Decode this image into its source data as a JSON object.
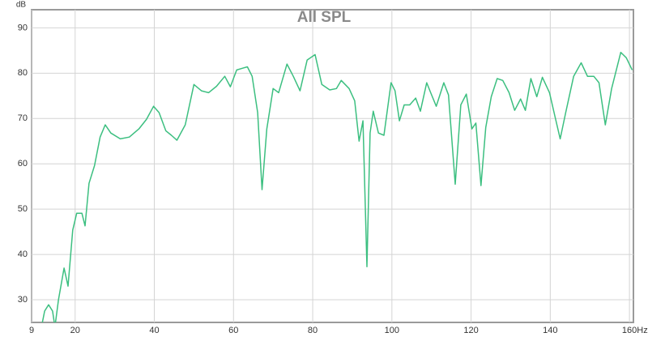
{
  "chart_data": {
    "type": "line",
    "title": "All SPL",
    "y_label": "dB",
    "x_label": "Hz",
    "xlim": [
      9,
      161
    ],
    "ylim": [
      25,
      94
    ],
    "xticks": [
      9,
      20,
      40,
      60,
      80,
      100,
      120,
      140,
      160
    ],
    "yticks": [
      30,
      40,
      50,
      60,
      70,
      80,
      90
    ],
    "grid": true,
    "x": [
      11.5,
      12.3,
      13.3,
      14.3,
      14.9,
      15.8,
      17.2,
      18.2,
      19.4,
      20.4,
      21.7,
      22.5,
      23.5,
      24.9,
      26.3,
      27.6,
      29,
      31.4,
      33.7,
      36.1,
      38,
      39.8,
      41.2,
      42.9,
      44.3,
      45.7,
      47.8,
      50,
      51.9,
      53.7,
      55.7,
      57.8,
      59.2,
      60.8,
      62.3,
      63.5,
      64.7,
      66.1,
      67.2,
      68.4,
      70,
      71.4,
      73.5,
      75.1,
      76.8,
      78.6,
      80.6,
      82.3,
      84.3,
      86,
      87.2,
      89.2,
      90.6,
      91.7,
      92.7,
      93.7,
      94.5,
      95.3,
      96.6,
      98,
      99.8,
      100.8,
      101.9,
      103.1,
      104.5,
      106,
      107.2,
      108.8,
      109.8,
      111.2,
      113.1,
      114.3,
      116,
      117.4,
      118.8,
      120.2,
      121.2,
      122.5,
      123.7,
      125.1,
      126.6,
      128,
      129.6,
      131,
      132.5,
      133.7,
      135.1,
      136.6,
      138,
      139.8,
      141.2,
      142.5,
      143.9,
      145.9,
      147.8,
      149.4,
      151,
      152.3,
      153.9,
      155.5,
      157.8,
      159.2,
      160.7
    ],
    "series": [
      {
        "name": "All SPL",
        "color": "#3cbf80",
        "values": [
          24,
          27.5,
          28.9,
          27.5,
          24,
          30,
          37,
          33,
          45.4,
          49.1,
          49.1,
          46.3,
          55.7,
          59.6,
          65.9,
          68.6,
          66.8,
          65.5,
          65.9,
          67.7,
          69.8,
          72.7,
          71.3,
          67.3,
          66.3,
          65.2,
          68.6,
          77.5,
          76.1,
          75.7,
          77.1,
          79.3,
          77,
          80.7,
          81.1,
          81.4,
          79.3,
          71.3,
          54.3,
          67.7,
          76.6,
          75.7,
          82,
          79.3,
          76.1,
          82.9,
          84.1,
          77.5,
          76.3,
          76.6,
          78.4,
          76.6,
          73.9,
          65,
          69.5,
          37.3,
          66.8,
          71.6,
          66.8,
          66.3,
          77.9,
          76.1,
          69.5,
          73,
          73,
          74.5,
          71.6,
          77.9,
          75.7,
          72.7,
          77.9,
          75.2,
          55.5,
          73,
          75.4,
          67.7,
          69,
          55.2,
          68,
          74.8,
          78.8,
          78.4,
          75.7,
          71.8,
          74.3,
          71.8,
          78.8,
          74.8,
          79.1,
          75.7,
          70.4,
          65.5,
          71.3,
          79.3,
          82.3,
          79.3,
          79.3,
          77.9,
          68.6,
          76.6,
          84.6,
          83.4,
          80.7
        ]
      }
    ]
  }
}
